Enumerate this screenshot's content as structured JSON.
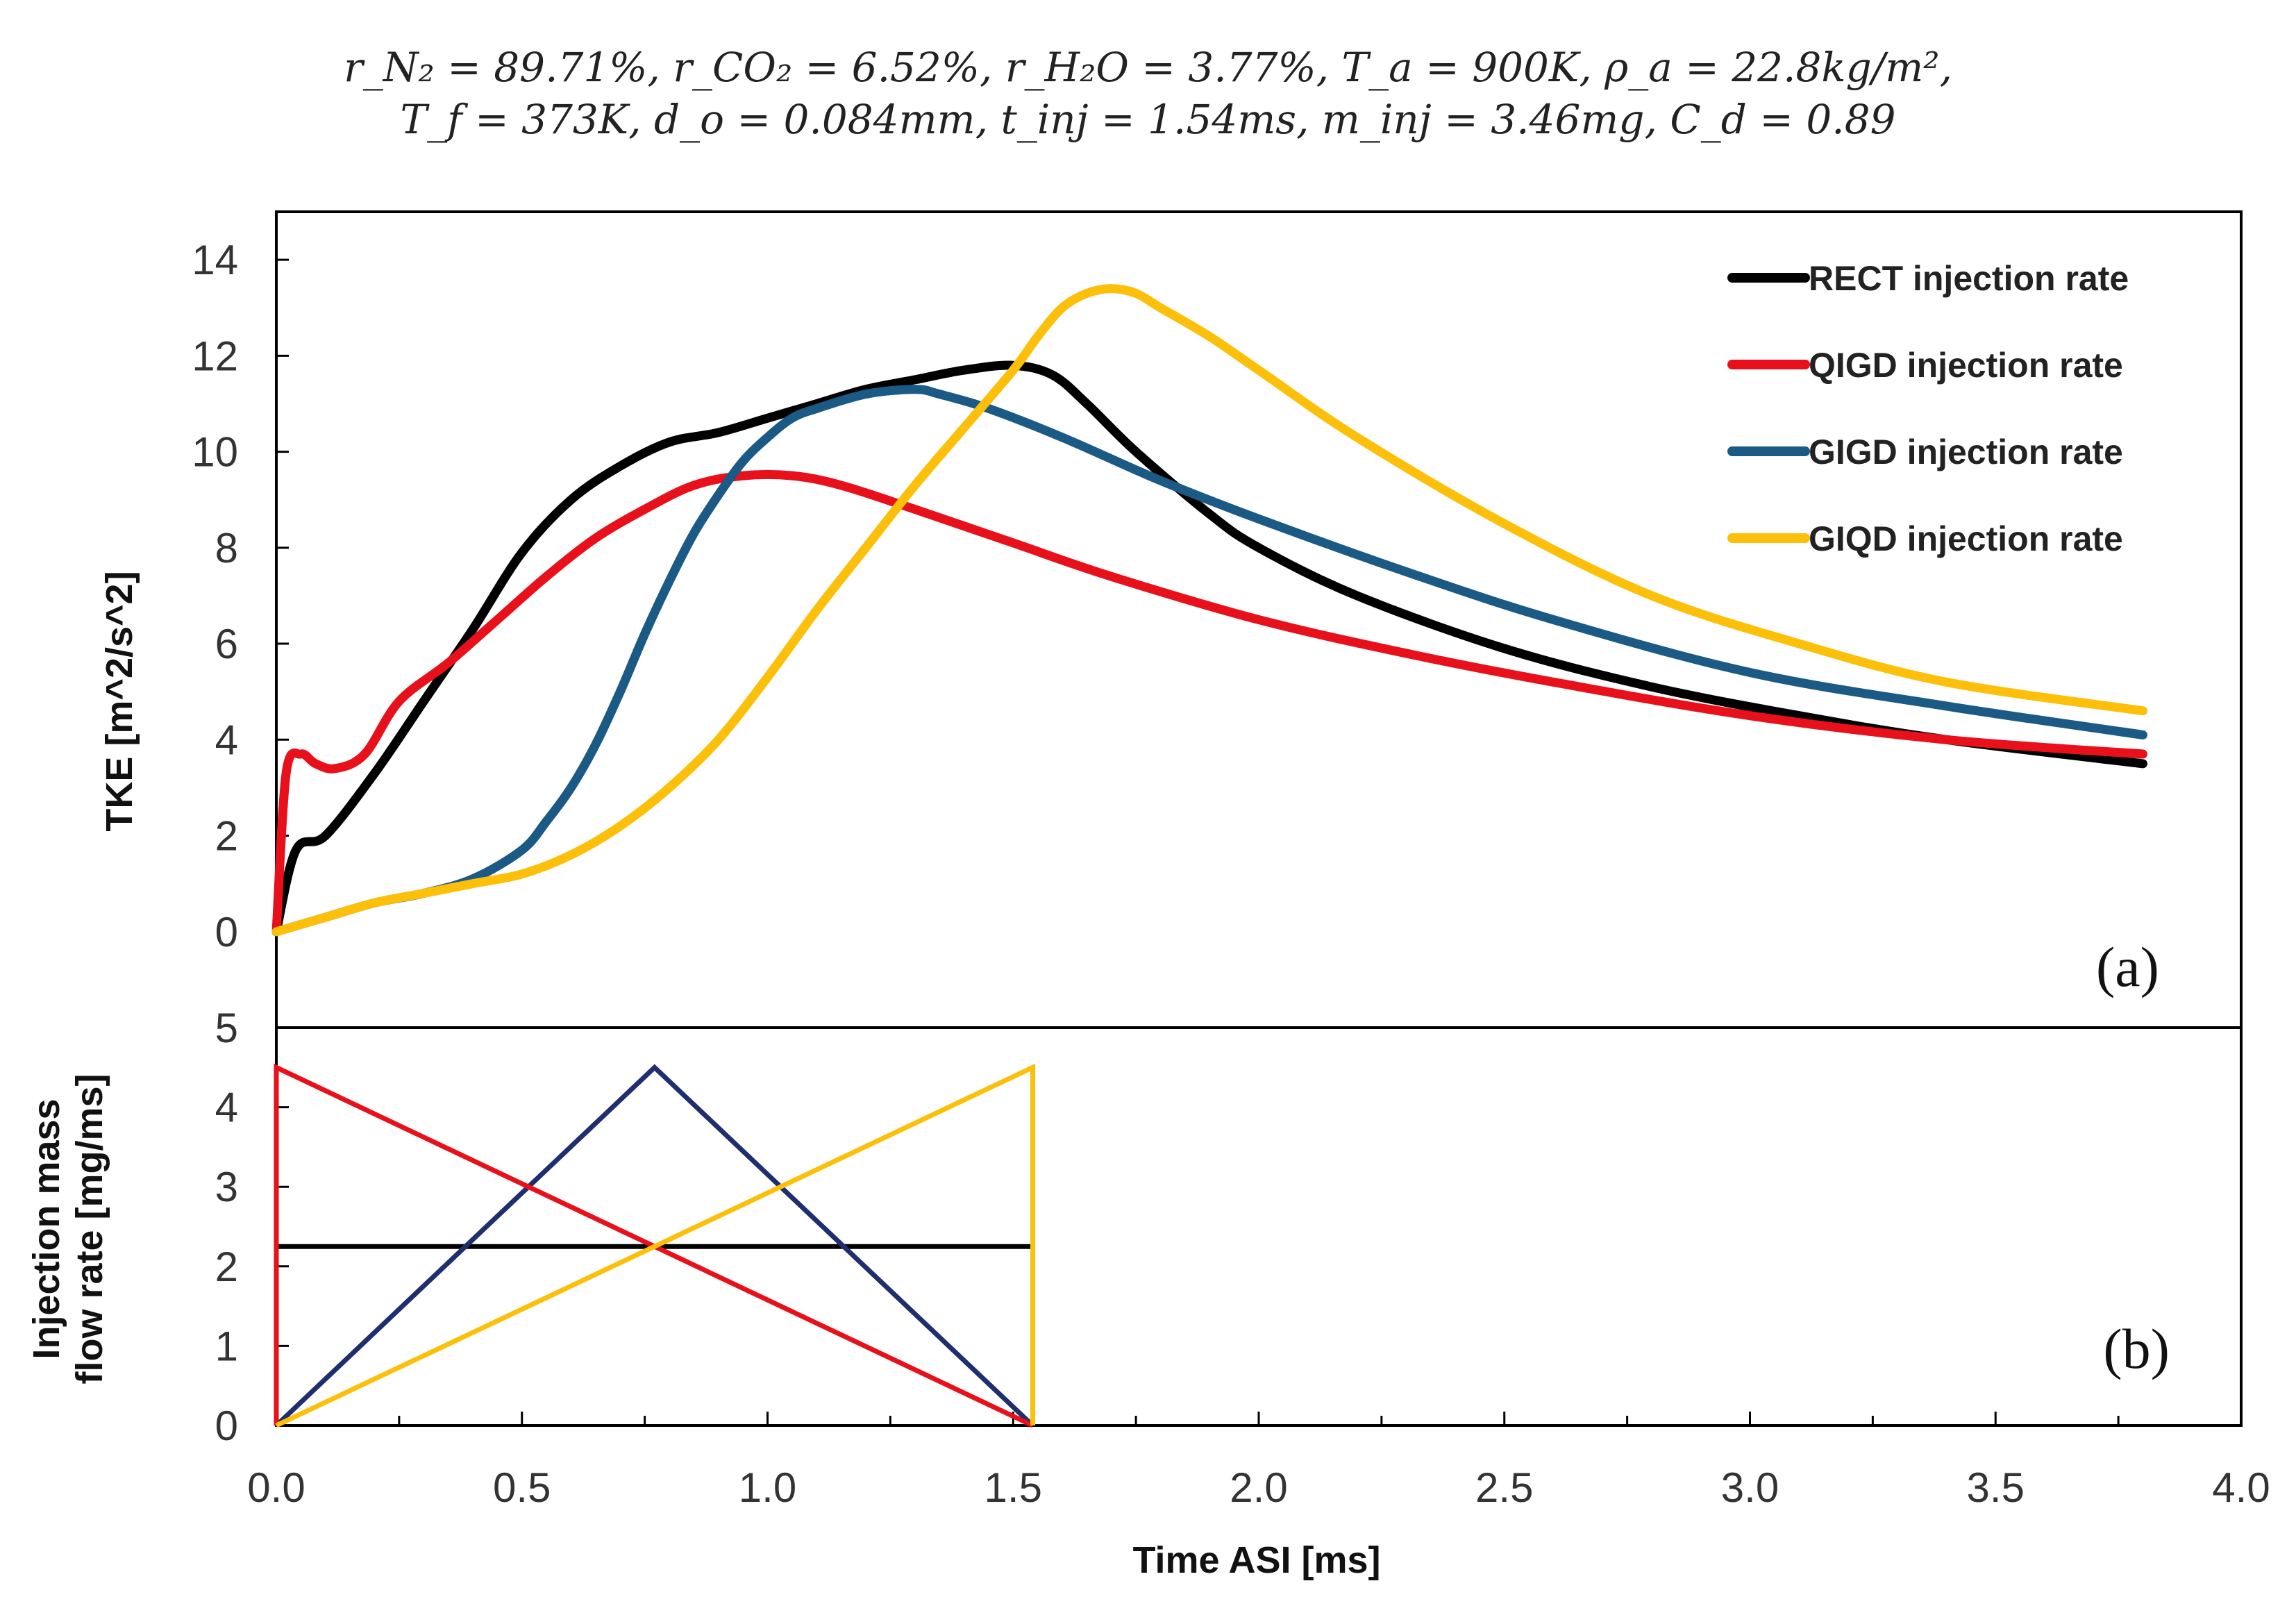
{
  "header": {
    "line1": "r_N₂ = 89.71%, r_CO₂ = 6.52%, r_H₂O = 3.77%, T_a = 900K, ρ_a = 22.8kg/m²,",
    "line2": "T_f = 373K, d_o = 0.084mm, t_inj = 1.54ms, m_inj = 3.46mg, C_d = 0.89"
  },
  "chart_data": [
    {
      "panel": "(a)",
      "type": "line",
      "title": "",
      "xlabel": "Time ASI [ms]",
      "ylabel": "TKE [m^2/s^2]",
      "xlim": [
        0.0,
        4.0
      ],
      "ylim": [
        -2,
        15
      ],
      "yticks": [
        0,
        2,
        4,
        6,
        8,
        10,
        12,
        14
      ],
      "legend_position": "top-right",
      "series": [
        {
          "name": "RECT injection rate",
          "color": "#000000",
          "x": [
            0,
            0.04,
            0.1,
            0.2,
            0.3,
            0.4,
            0.5,
            0.6,
            0.7,
            0.8,
            0.9,
            1.0,
            1.1,
            1.2,
            1.3,
            1.4,
            1.5,
            1.58,
            1.65,
            1.75,
            1.9,
            2.0,
            2.2,
            2.5,
            2.8,
            3.1,
            3.4,
            3.8
          ],
          "y": [
            0,
            1.7,
            2.0,
            3.3,
            4.8,
            6.3,
            7.9,
            9.0,
            9.7,
            10.2,
            10.4,
            10.7,
            11.0,
            11.3,
            11.5,
            11.7,
            11.8,
            11.6,
            11.0,
            10.0,
            8.7,
            8.0,
            7.0,
            5.9,
            5.1,
            4.5,
            4.0,
            3.5
          ]
        },
        {
          "name": "QIGD injection rate",
          "color": "#e8101a",
          "x": [
            0,
            0.02,
            0.05,
            0.08,
            0.12,
            0.18,
            0.25,
            0.35,
            0.45,
            0.55,
            0.65,
            0.75,
            0.85,
            0.95,
            1.05,
            1.15,
            1.3,
            1.5,
            1.7,
            2.0,
            2.3,
            2.6,
            3.0,
            3.4,
            3.8
          ],
          "y": [
            0,
            3.3,
            3.7,
            3.5,
            3.4,
            3.7,
            4.8,
            5.6,
            6.5,
            7.4,
            8.2,
            8.8,
            9.3,
            9.5,
            9.5,
            9.3,
            8.8,
            8.1,
            7.4,
            6.5,
            5.8,
            5.2,
            4.5,
            4.0,
            3.7
          ]
        },
        {
          "name": "GIGD injection rate",
          "color": "#1a5a85",
          "x": [
            0,
            0.1,
            0.2,
            0.3,
            0.4,
            0.5,
            0.55,
            0.6,
            0.65,
            0.7,
            0.75,
            0.8,
            0.85,
            0.9,
            0.95,
            1.0,
            1.05,
            1.1,
            1.2,
            1.3,
            1.35,
            1.45,
            1.6,
            1.8,
            2.0,
            2.3,
            2.6,
            3.0,
            3.4,
            3.8
          ],
          "y": [
            0,
            0.3,
            0.6,
            0.8,
            1.1,
            1.7,
            2.3,
            3.0,
            3.9,
            5.0,
            6.2,
            7.3,
            8.3,
            9.1,
            9.8,
            10.3,
            10.7,
            10.9,
            11.2,
            11.3,
            11.2,
            10.9,
            10.3,
            9.4,
            8.6,
            7.5,
            6.5,
            5.4,
            4.7,
            4.1
          ]
        },
        {
          "name": "GIQD injection rate",
          "color": "#fcbf0a",
          "x": [
            0,
            0.1,
            0.2,
            0.3,
            0.4,
            0.5,
            0.6,
            0.7,
            0.8,
            0.9,
            1.0,
            1.1,
            1.2,
            1.3,
            1.4,
            1.5,
            1.55,
            1.6,
            1.65,
            1.7,
            1.75,
            1.8,
            1.9,
            2.0,
            2.2,
            2.5,
            2.8,
            3.1,
            3.4,
            3.8
          ],
          "y": [
            0,
            0.3,
            0.6,
            0.8,
            1.0,
            1.2,
            1.6,
            2.2,
            3.0,
            4.0,
            5.3,
            6.7,
            8.0,
            9.3,
            10.5,
            11.7,
            12.4,
            13.0,
            13.3,
            13.4,
            13.3,
            13.0,
            12.4,
            11.7,
            10.3,
            8.5,
            7.0,
            6.0,
            5.2,
            4.6
          ]
        }
      ]
    },
    {
      "panel": "(b)",
      "type": "line",
      "title": "",
      "xlabel": "Time ASI [ms]",
      "ylabel": "Injection mass flow rate [mg/ms]",
      "xlim": [
        0.0,
        4.0
      ],
      "ylim": [
        0,
        5
      ],
      "xticks": [
        "0.0",
        "0.5",
        "1.0",
        "1.5",
        "2.0",
        "2.5",
        "3.0",
        "3.5",
        "4.0"
      ],
      "yticks": [
        0,
        1,
        2,
        3,
        4,
        5
      ],
      "series": [
        {
          "name": "RECT",
          "color": "#000000",
          "x": [
            0,
            0,
            1.54,
            1.54
          ],
          "y": [
            0,
            2.25,
            2.25,
            0
          ]
        },
        {
          "name": "QIGD",
          "color": "#e8101a",
          "x": [
            0,
            0,
            1.54
          ],
          "y": [
            0,
            4.5,
            0
          ]
        },
        {
          "name": "GIGD",
          "color": "#1f2f6e",
          "x": [
            0,
            0.77,
            1.54
          ],
          "y": [
            0,
            4.5,
            0
          ]
        },
        {
          "name": "GIQD",
          "color": "#fcbf0a",
          "x": [
            0,
            1.54,
            1.54
          ],
          "y": [
            0,
            4.5,
            0
          ]
        }
      ]
    }
  ]
}
